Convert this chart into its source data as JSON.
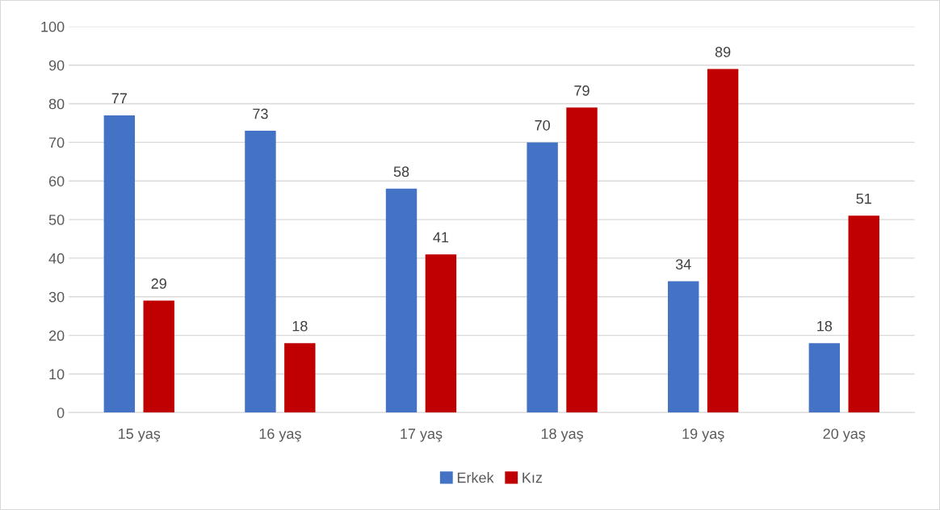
{
  "chart_data": {
    "type": "bar",
    "categories": [
      "15 yaş",
      "16 yaş",
      "17 yaş",
      "18 yaş",
      "19 yaş",
      "20 yaş"
    ],
    "series": [
      {
        "name": "Erkek",
        "color": "#4472c4",
        "values": [
          77,
          73,
          58,
          70,
          34,
          18
        ]
      },
      {
        "name": "Kız",
        "color": "#c00000",
        "values": [
          29,
          18,
          41,
          79,
          89,
          51
        ]
      }
    ],
    "ylim": [
      0,
      100
    ],
    "yticks": [
      0,
      10,
      20,
      30,
      40,
      50,
      60,
      70,
      80,
      90,
      100
    ],
    "grid": "y",
    "legend": "bottom",
    "data_labels": true
  }
}
